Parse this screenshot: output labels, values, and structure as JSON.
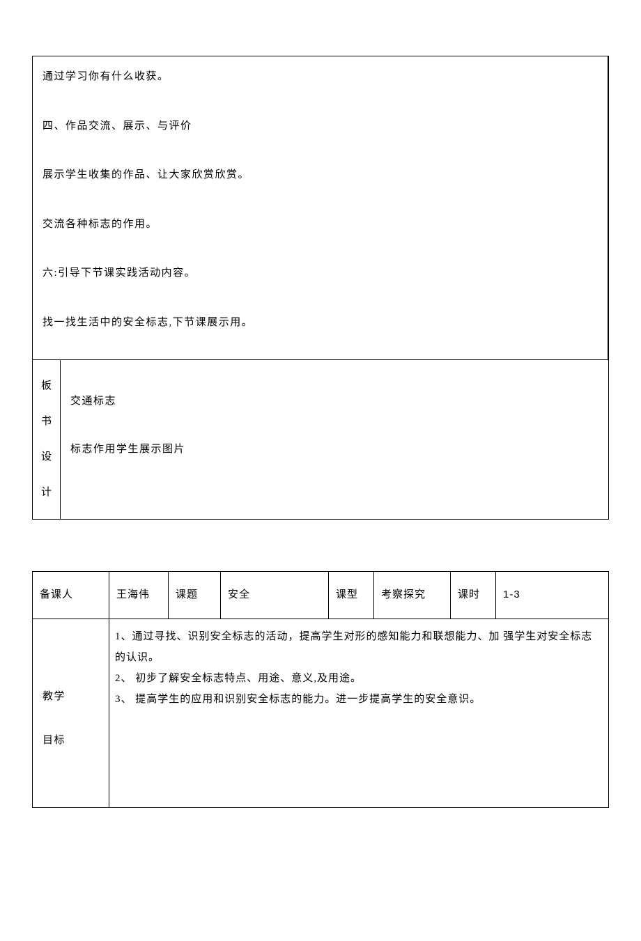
{
  "table1": {
    "paragraphs": [
      "通过学习你有什么收获。",
      "四、作品交流、展示、与评价",
      "展示学生收集的作品、让大家欣赏欣赏。",
      "交流各种标志的作用。",
      "六:引导下节课实践活动内容。",
      "找一找生活中的安全标志,下节课展示用。"
    ],
    "board": {
      "label": "板书设计",
      "line1": "交通标志",
      "line2": "标志作用学生展示图片"
    }
  },
  "table2": {
    "header": {
      "l1": "备课人",
      "v1": "王海伟",
      "l2": "课题",
      "v2": "安全",
      "l3": "课型",
      "v3": "考察探究",
      "l4": "课时",
      "v4": "1-3"
    },
    "objectives": {
      "label": "教学目标",
      "text": "1、通过寻找、识别安全标志的活动，提高学生对形的感知能力和联想能力、加 强学生对安全标志的认识。\n2、 初步了解安全标志特点、用途、意义,及用途。\n3、 提高学生的应用和识别安全标志的能力。进一步提高学生的安全意识。"
    }
  }
}
